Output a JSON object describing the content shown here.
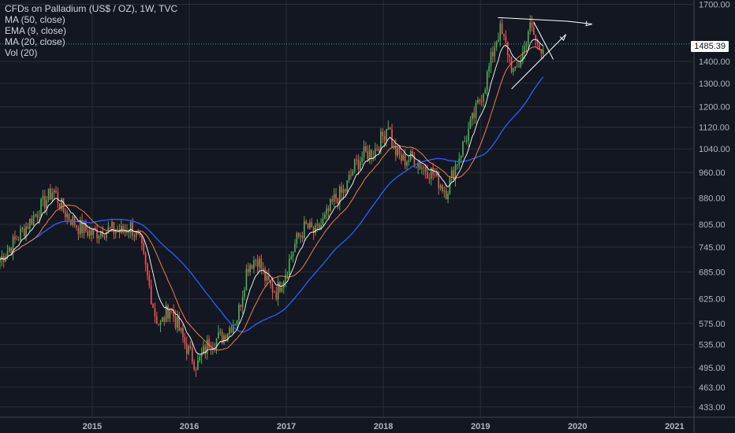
{
  "legend": {
    "title": "CFDs on Palladium (US$ / OZ), 1W, TVC",
    "ma50": "MA (50, close)",
    "ema9": "EMA (9, close)",
    "ma20": "MA (20, close)",
    "vol": "Vol (20)"
  },
  "colors": {
    "background": "#131722",
    "grid": "#2a2e39",
    "up": "#26a69a",
    "up_bright": "#4caf50",
    "down": "#ef5350",
    "ma50": "#2962ff",
    "ema9": "#ffffff",
    "ma20": "#f57c4b",
    "price_line": "#26a69a",
    "axis_text": "#b2b5be",
    "drawing": "#ffffff"
  },
  "chart_data": {
    "type": "line",
    "title": "CFDs on Palladium (US$ / OZ), 1W, TVC",
    "y_scale": "log",
    "ylim": [
      418,
      1725
    ],
    "xlim": [
      2014.05,
      2021.2
    ],
    "grid": true,
    "last_price": "1485.39",
    "y_ticks": [
      "1700.00",
      "1400.00",
      "1300.00",
      "1200.00",
      "1120.00",
      "1040.00",
      "960.00",
      "880.00",
      "805.00",
      "745.00",
      "685.00",
      "625.00",
      "575.00",
      "535.00",
      "495.00",
      "463.00",
      "433.00"
    ],
    "x_ticks": [
      "2015",
      "2016",
      "2017",
      "2018",
      "2019",
      "2020",
      "2021"
    ],
    "series": [
      {
        "name": "Palladium",
        "x": [
          2014.05,
          2014.2,
          2014.35,
          2014.5,
          2014.6,
          2014.7,
          2014.85,
          2015.0,
          2015.1,
          2015.2,
          2015.3,
          2015.4,
          2015.5,
          2015.6,
          2015.65,
          2015.7,
          2015.8,
          2015.9,
          2016.0,
          2016.08,
          2016.2,
          2016.35,
          2016.5,
          2016.6,
          2016.7,
          2016.8,
          2016.9,
          2017.0,
          2017.1,
          2017.2,
          2017.3,
          2017.4,
          2017.5,
          2017.6,
          2017.7,
          2017.8,
          2017.9,
          2018.0,
          2018.05,
          2018.1,
          2018.2,
          2018.3,
          2018.4,
          2018.5,
          2018.6,
          2018.65,
          2018.75,
          2018.85,
          2018.95,
          2019.05,
          2019.15,
          2019.2,
          2019.28,
          2019.35,
          2019.45,
          2019.5,
          2019.55,
          2019.6,
          2019.65
        ],
        "values": [
          715,
          760,
          810,
          865,
          905,
          845,
          800,
          780,
          790,
          790,
          785,
          800,
          750,
          640,
          590,
          570,
          610,
          560,
          520,
          498,
          540,
          550,
          590,
          700,
          720,
          660,
          640,
          690,
          760,
          800,
          780,
          820,
          880,
          900,
          980,
          1020,
          1030,
          1090,
          1140,
          1040,
          1000,
          1010,
          980,
          960,
          920,
          900,
          990,
          1080,
          1180,
          1300,
          1490,
          1560,
          1450,
          1330,
          1460,
          1580,
          1530,
          1460,
          1485
        ]
      },
      {
        "name": "EMA (9, close)",
        "x": [],
        "values": []
      },
      {
        "name": "MA (20, close)",
        "x": [],
        "values": []
      },
      {
        "name": "MA (50, close)",
        "x": [],
        "values": []
      }
    ]
  }
}
